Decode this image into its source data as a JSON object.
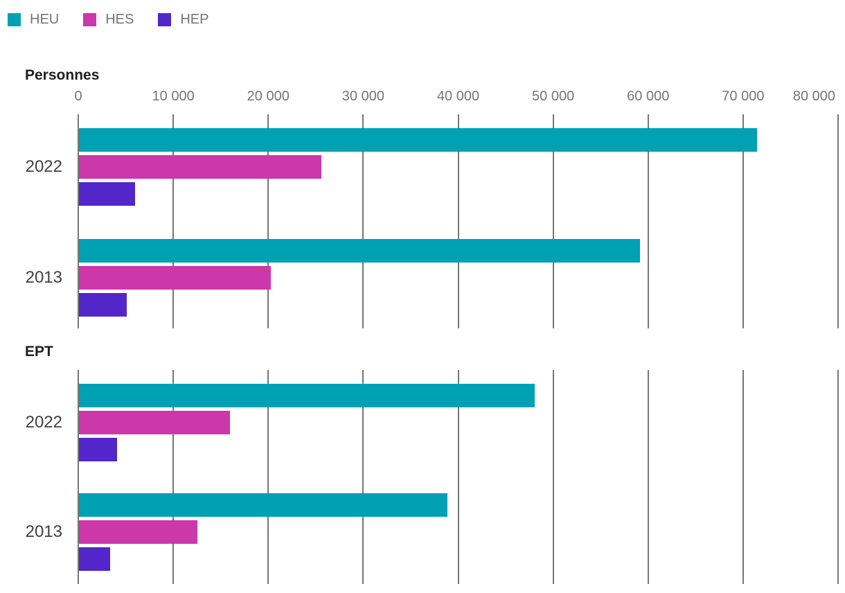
{
  "legend": {
    "items": [
      {
        "label": "HEU",
        "color": "#00A1B3"
      },
      {
        "label": "HES",
        "color": "#CC37A9"
      },
      {
        "label": "HEP",
        "color": "#5226C9"
      }
    ]
  },
  "axis": {
    "tick_labels": [
      "0",
      "10 000",
      "20 000",
      "30 000",
      "40 000",
      "50 000",
      "60 000",
      "70 000",
      "80 000"
    ],
    "tick_values": [
      0,
      10000,
      20000,
      30000,
      40000,
      50000,
      60000,
      70000,
      80000
    ],
    "min": 0,
    "max": 80000
  },
  "chart_data": {
    "type": "bar",
    "orientation": "horizontal",
    "grid": "vertical",
    "legend_position": "top-left",
    "xlim": [
      0,
      80000
    ],
    "xticks": [
      0,
      10000,
      20000,
      30000,
      40000,
      50000,
      60000,
      70000,
      80000
    ],
    "sections": [
      {
        "title": "Personnes",
        "categories": [
          "2022",
          "2013"
        ],
        "series": [
          {
            "name": "HEU",
            "color": "#00A1B3",
            "values": [
              71400,
              59100
            ]
          },
          {
            "name": "HES",
            "color": "#CC37A9",
            "values": [
              25500,
              20200
            ]
          },
          {
            "name": "HEP",
            "color": "#5226C9",
            "values": [
              5900,
              5000
            ]
          }
        ]
      },
      {
        "title": "EPT",
        "categories": [
          "2022",
          "2013"
        ],
        "series": [
          {
            "name": "HEU",
            "color": "#00A1B3",
            "values": [
              48000,
              38800
            ]
          },
          {
            "name": "HES",
            "color": "#CC37A9",
            "values": [
              15900,
              12500
            ]
          },
          {
            "name": "HEP",
            "color": "#5226C9",
            "values": [
              4000,
              3300
            ]
          }
        ]
      }
    ]
  },
  "colors": {
    "heu": "#00A1B3",
    "hes": "#CC37A9",
    "hep": "#5226C9",
    "grid": "#757575",
    "axis_text": "#757575",
    "year_text": "#404040",
    "heading_text": "#1F1F1F",
    "background": "#FFFFFF"
  }
}
